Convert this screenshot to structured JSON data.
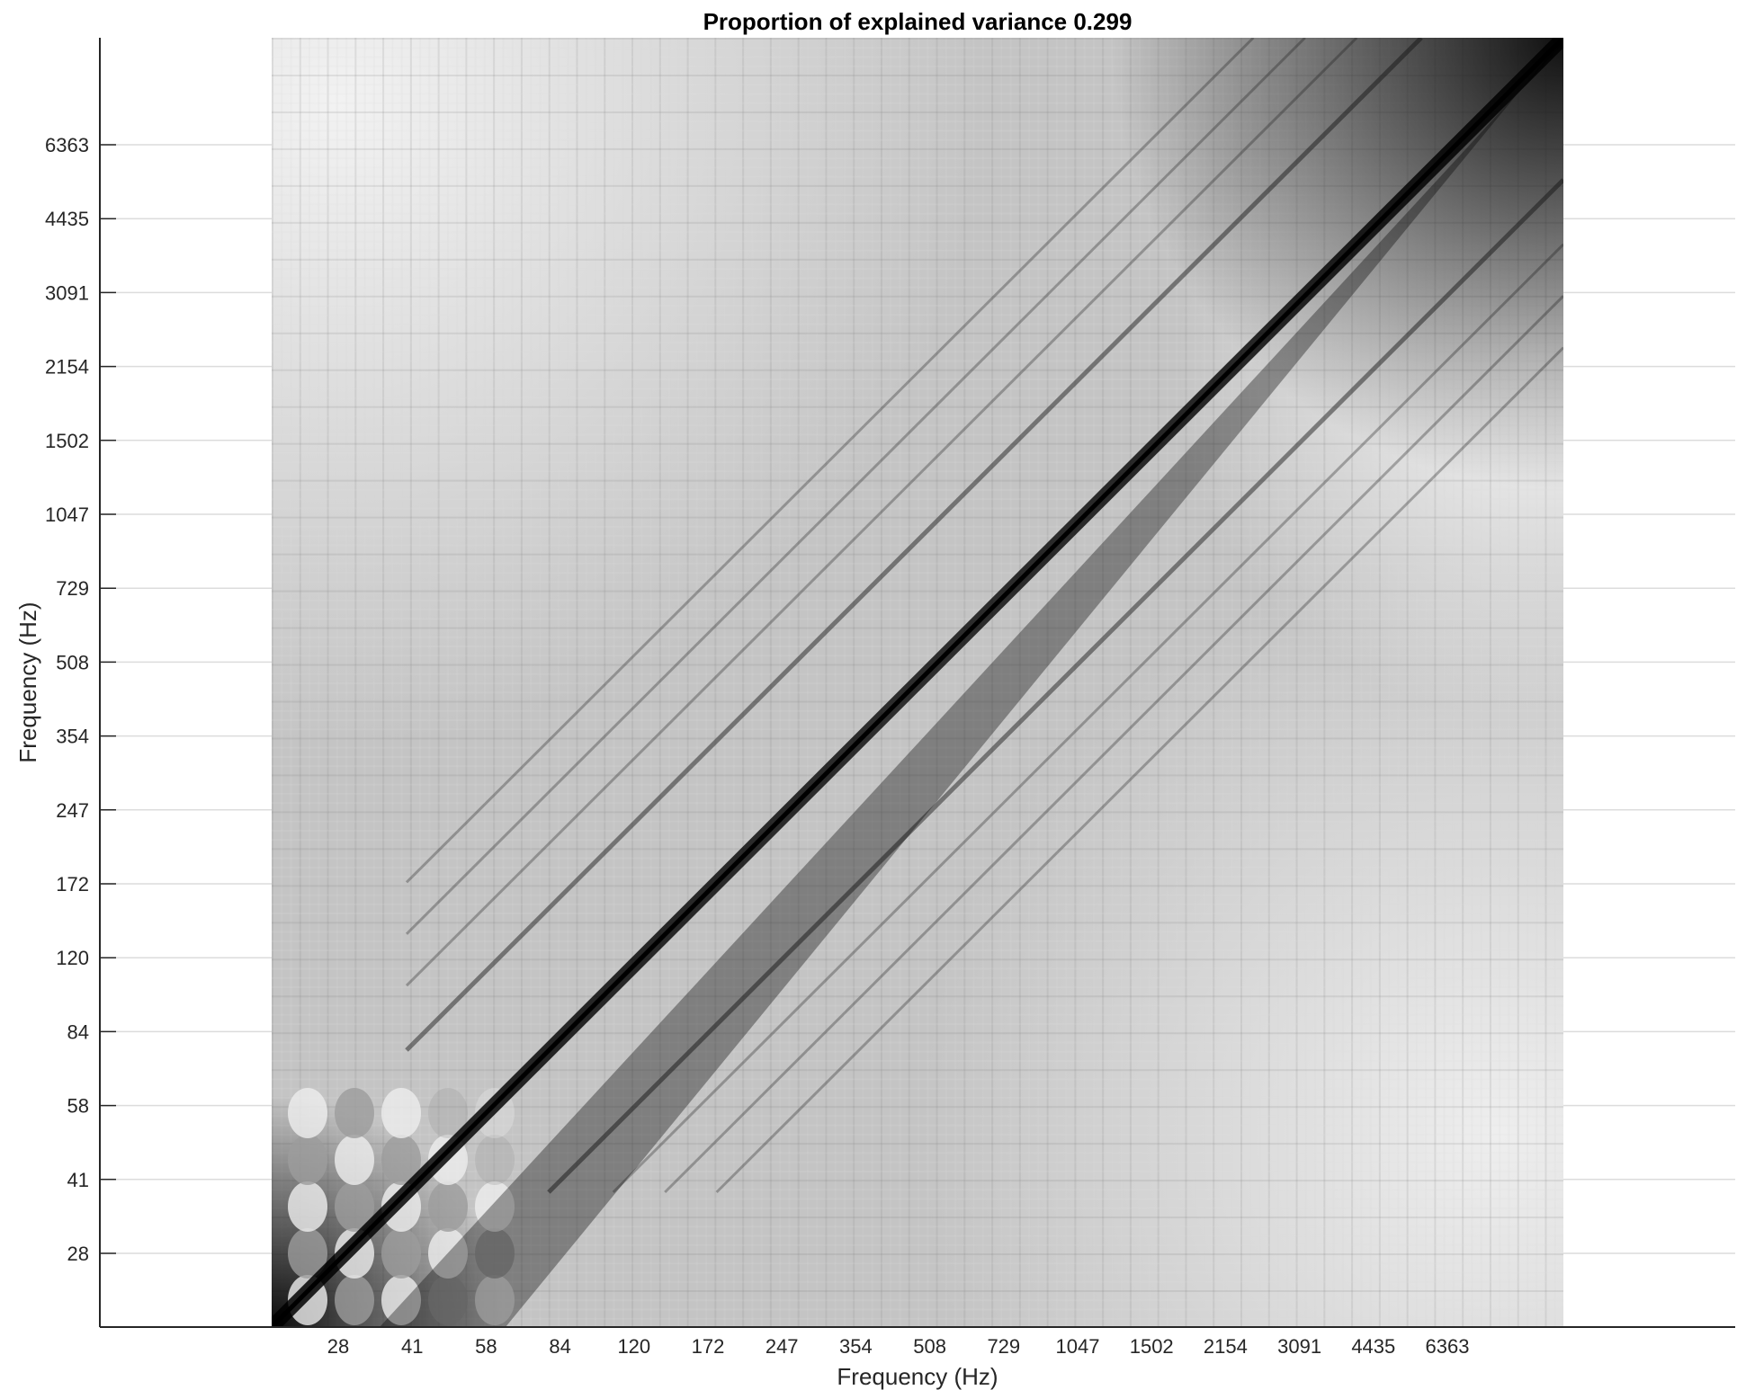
{
  "chart_data": {
    "type": "heatmap",
    "title": "Proportion of explained variance 0.299",
    "xlabel": "Frequency (Hz)",
    "ylabel": "Frequency (Hz)",
    "x_ticks": [
      "28",
      "41",
      "58",
      "84",
      "120",
      "172",
      "247",
      "354",
      "508",
      "729",
      "1047",
      "1502",
      "2154",
      "3091",
      "4435",
      "6363"
    ],
    "y_ticks": [
      "28",
      "41",
      "58",
      "84",
      "120",
      "172",
      "247",
      "354",
      "508",
      "729",
      "1047",
      "1502",
      "2154",
      "3091",
      "4435",
      "6363"
    ],
    "colormap": "gray",
    "grid": true,
    "description_values": {
      "matrix_symmetric": true,
      "diagonal_dark": true
    }
  },
  "colors": {
    "axis": "#262626",
    "grid": "#dcdcdc",
    "background": "#ffffff"
  }
}
